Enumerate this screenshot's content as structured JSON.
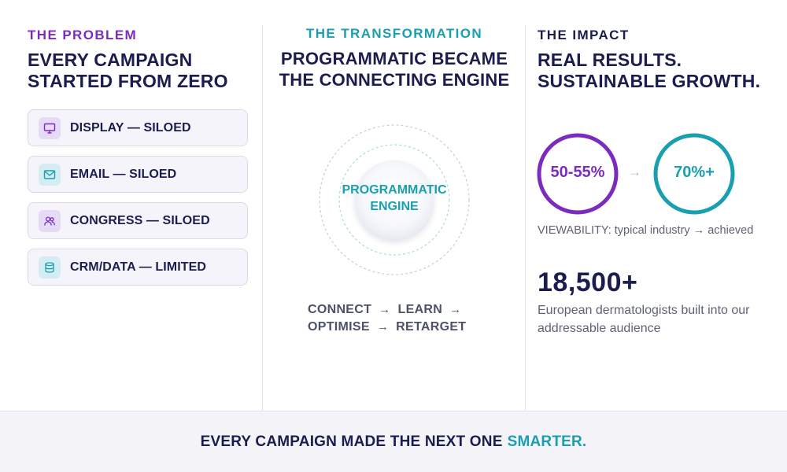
{
  "problem": {
    "eyebrow": "THE PROBLEM",
    "heading": "EVERY CAMPAIGN STARTED FROM ZERO",
    "items": [
      {
        "label": "DISPLAY — SILOED",
        "icon": "monitor-icon",
        "tone": "purple"
      },
      {
        "label": "EMAIL — SILOED",
        "icon": "mail-icon",
        "tone": "teal"
      },
      {
        "label": "CONGRESS — SILOED",
        "icon": "people-icon",
        "tone": "purple"
      },
      {
        "label": "CRM/DATA — LIMITED",
        "icon": "database-icon",
        "tone": "teal"
      }
    ]
  },
  "transformation": {
    "eyebrow": "THE TRANSFORMATION",
    "heading": "PROGRAMMATIC BECAME THE CONNECTING ENGINE",
    "engine_line1": "PROGRAMMATIC",
    "engine_line2": "ENGINE",
    "cycle_row1": [
      "CONNECT",
      "LEARN"
    ],
    "cycle_row2": [
      "OPTIMISE",
      "RETARGET"
    ]
  },
  "impact": {
    "eyebrow": "THE IMPACT",
    "heading": "REAL RESULTS. SUSTAINABLE GROWTH.",
    "before_value": "50-55%",
    "after_value": "70%+",
    "viewability_caption": "VIEWABILITY: typical industry → achieved",
    "audience_number": "18,500+",
    "audience_caption": "European dermatologists built into our addressable audience"
  },
  "footer": {
    "text": "EVERY CAMPAIGN MADE THE NEXT ONE",
    "accent": "SMARTER."
  },
  "colors": {
    "navy": "#1a1d4e",
    "purple": "#7b2cbf",
    "teal": "#1a9fb0",
    "muted": "#5f6375"
  }
}
